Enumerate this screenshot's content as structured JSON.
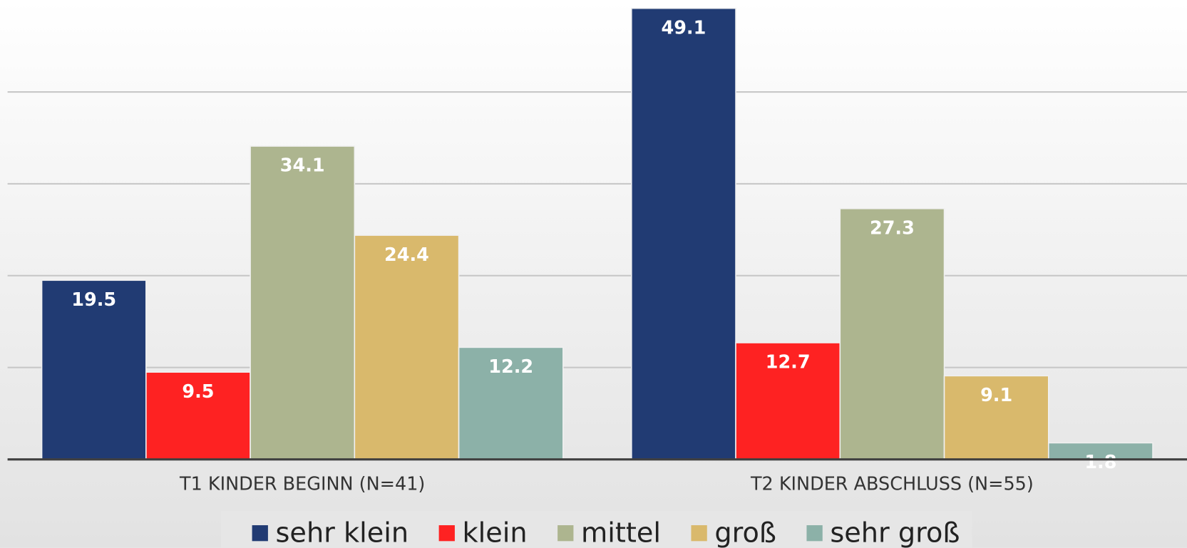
{
  "chart_data": {
    "type": "bar",
    "categories": [
      "T1 KINDER BEGINN (N=41)",
      "T2 KINDER ABSCHLUSS (N=55)"
    ],
    "series": [
      {
        "name": "sehr klein",
        "color": "#213b73",
        "values": [
          19.5,
          49.1
        ]
      },
      {
        "name": "klein",
        "color": "#fe2222",
        "values": [
          9.5,
          12.7
        ]
      },
      {
        "name": "mittel",
        "color": "#adb58f",
        "values": [
          34.1,
          27.3
        ]
      },
      {
        "name": "groß",
        "color": "#d9b96c",
        "values": [
          24.4,
          9.1
        ]
      },
      {
        "name": "sehr groß",
        "color": "#8cb1a8",
        "values": [
          12.2,
          1.8
        ]
      }
    ],
    "ylim": [
      0,
      50
    ],
    "yticks": [
      0,
      10,
      20,
      30,
      40
    ],
    "grid": true,
    "legend": "bottom"
  }
}
